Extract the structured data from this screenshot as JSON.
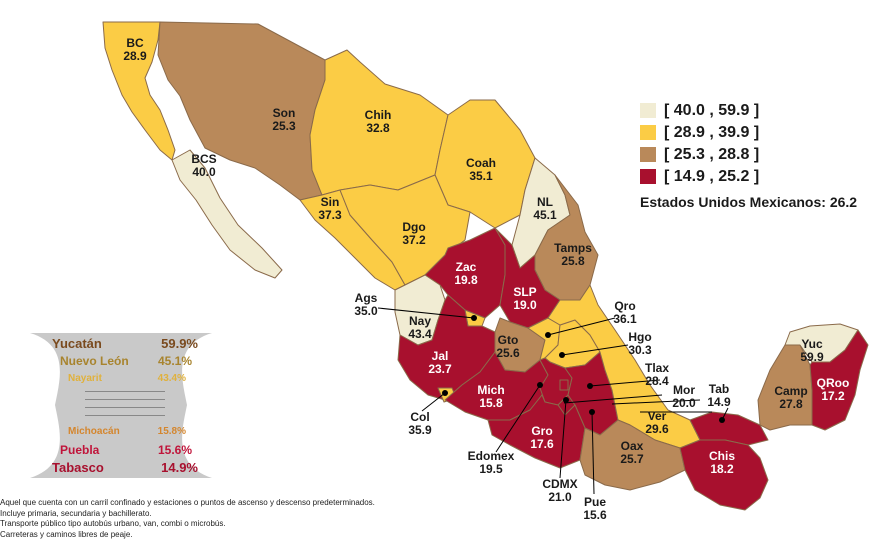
{
  "legend": {
    "ranges": [
      {
        "label": "[ 40.0 , 59.9 ]",
        "color": "#f1ecd3"
      },
      {
        "label": "[ 28.9 , 39.9 ]",
        "color": "#fbcc45"
      },
      {
        "label": "[ 25.3 , 28.8 ]",
        "color": "#b9895a"
      },
      {
        "label": "[ 14.9 , 25.2 ]",
        "color": "#a8102e"
      }
    ]
  },
  "national": {
    "label": "Estados Unidos Mexicanos:",
    "value": "26.2"
  },
  "states": {
    "bc": {
      "abbr": "BC",
      "value": "28.9"
    },
    "son": {
      "abbr": "Son",
      "value": "25.3"
    },
    "chih": {
      "abbr": "Chih",
      "value": "32.8"
    },
    "coah": {
      "abbr": "Coah",
      "value": "35.1"
    },
    "nl": {
      "abbr": "NL",
      "value": "45.1"
    },
    "bcs": {
      "abbr": "BCS",
      "value": "40.0"
    },
    "sin": {
      "abbr": "Sin",
      "value": "37.3"
    },
    "dgo": {
      "abbr": "Dgo",
      "value": "37.2"
    },
    "tamps": {
      "abbr": "Tamps",
      "value": "25.8"
    },
    "zac": {
      "abbr": "Zac",
      "value": "19.8"
    },
    "slp": {
      "abbr": "SLP",
      "value": "19.0"
    },
    "ags": {
      "abbr": "Ags",
      "value": "35.0"
    },
    "qro": {
      "abbr": "Qro",
      "value": "36.1"
    },
    "nay": {
      "abbr": "Nay",
      "value": "43.4"
    },
    "gto": {
      "abbr": "Gto",
      "value": "25.6"
    },
    "hgo": {
      "abbr": "Hgo",
      "value": "30.3"
    },
    "jal": {
      "abbr": "Jal",
      "value": "23.7"
    },
    "tlax": {
      "abbr": "Tlax",
      "value": "28.4"
    },
    "mich": {
      "abbr": "Mich",
      "value": "15.8"
    },
    "mor": {
      "abbr": "Mor",
      "value": "20.0"
    },
    "col": {
      "abbr": "Col",
      "value": "35.9"
    },
    "gro": {
      "abbr": "Gro",
      "value": "17.6"
    },
    "ver": {
      "abbr": "Ver",
      "value": "29.6"
    },
    "tab": {
      "abbr": "Tab",
      "value": "14.9"
    },
    "edomex": {
      "abbr": "Edomex",
      "value": "19.5"
    },
    "oax": {
      "abbr": "Oax",
      "value": "25.7"
    },
    "chis": {
      "abbr": "Chis",
      "value": "18.2"
    },
    "cdmx": {
      "abbr": "CDMX",
      "value": "21.0"
    },
    "pue": {
      "abbr": "Pue",
      "value": "15.6"
    },
    "yuc": {
      "abbr": "Yuc",
      "value": "59.9"
    },
    "camp": {
      "abbr": "Camp",
      "value": "27.8"
    },
    "qroo": {
      "abbr": "QRoo",
      "value": "17.2"
    }
  },
  "ranking": {
    "top": [
      {
        "name": "Yucatán",
        "value": "59.9%",
        "color": "#7a4a1e"
      },
      {
        "name": "Nuevo León",
        "value": "45.1%",
        "color": "#a8842e"
      },
      {
        "name": "Nayarit",
        "value": "43.4%",
        "color": "#e0b13c"
      }
    ],
    "bottom": [
      {
        "name": "Michoacán",
        "value": "15.8%",
        "color": "#d4862e"
      },
      {
        "name": "Puebla",
        "value": "15.6%",
        "color": "#c0143a"
      },
      {
        "name": "Tabasco",
        "value": "14.9%",
        "color": "#a8102e"
      }
    ]
  },
  "notes": [
    "Aquel que cuenta con un carril confinado y estaciones o puntos de ascenso y descenso predeterminados.",
    "Incluye primaria, secundaria y bachillerato.",
    "Transporte público tipo autobús urbano, van, combi o microbús.",
    "Carreteras y caminos libres de peaje."
  ]
}
